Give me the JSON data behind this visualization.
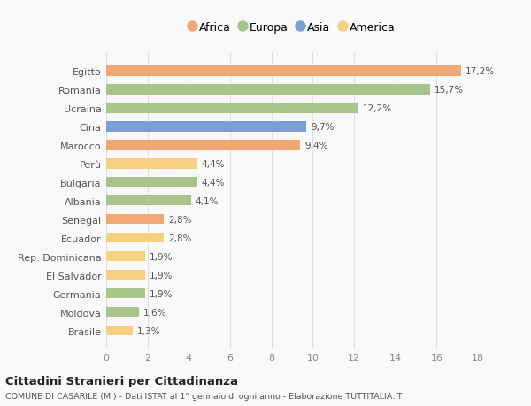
{
  "countries": [
    "Egitto",
    "Romania",
    "Ucraina",
    "Cina",
    "Marocco",
    "Perù",
    "Bulgaria",
    "Albania",
    "Senegal",
    "Ecuador",
    "Rep. Dominicana",
    "El Salvador",
    "Germania",
    "Moldova",
    "Brasile"
  ],
  "values": [
    17.2,
    15.7,
    12.2,
    9.7,
    9.4,
    4.4,
    4.4,
    4.1,
    2.8,
    2.8,
    1.9,
    1.9,
    1.9,
    1.6,
    1.3
  ],
  "labels": [
    "17,2%",
    "15,7%",
    "12,2%",
    "9,7%",
    "9,4%",
    "4,4%",
    "4,4%",
    "4,1%",
    "2,8%",
    "2,8%",
    "1,9%",
    "1,9%",
    "1,9%",
    "1,6%",
    "1,3%"
  ],
  "colors": [
    "#f0a875",
    "#a8c48a",
    "#a8c48a",
    "#7b9fd4",
    "#f0a875",
    "#f5d080",
    "#a8c48a",
    "#a8c48a",
    "#f0a875",
    "#f5d080",
    "#f5d080",
    "#f5d080",
    "#a8c48a",
    "#a8c48a",
    "#f5d080"
  ],
  "legend_labels": [
    "Africa",
    "Europa",
    "Asia",
    "America"
  ],
  "legend_colors": [
    "#f0a875",
    "#a8c48a",
    "#7b9fd4",
    "#f5d080"
  ],
  "title": "Cittadini Stranieri per Cittadinanza",
  "subtitle": "COMUNE DI CASARILE (MI) - Dati ISTAT al 1° gennaio di ogni anno - Elaborazione TUTTITALIA.IT",
  "xlim": [
    0,
    18
  ],
  "xticks": [
    0,
    2,
    4,
    6,
    8,
    10,
    12,
    14,
    16,
    18
  ],
  "background_color": "#f9f9f9",
  "grid_color": "#e0e0e0",
  "bar_height": 0.55
}
